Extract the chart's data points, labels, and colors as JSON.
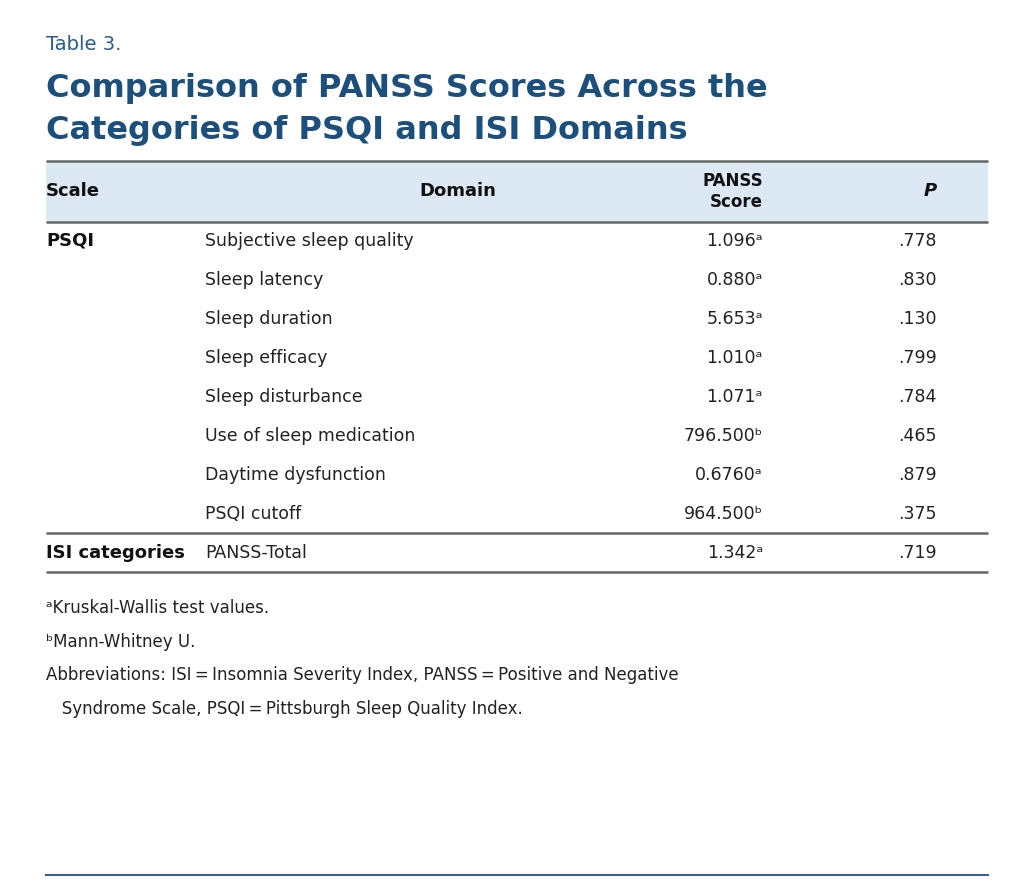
{
  "table_label": "Table 3.",
  "title_line1": "Comparison of PANSS Scores Across the",
  "title_line2": "Categories of PSQI and ISI Domains",
  "header_col0": "Scale",
  "header_col1": "Domain",
  "header_col2": "PANSS\nScore",
  "header_col3": "P",
  "rows": [
    [
      "PSQI",
      "Subjective sleep quality",
      "1.096ᵃ",
      ".778"
    ],
    [
      "",
      "Sleep latency",
      "0.880ᵃ",
      ".830"
    ],
    [
      "",
      "Sleep duration",
      "5.653ᵃ",
      ".130"
    ],
    [
      "",
      "Sleep efficacy",
      "1.010ᵃ",
      ".799"
    ],
    [
      "",
      "Sleep disturbance",
      "1.071ᵃ",
      ".784"
    ],
    [
      "",
      "Use of sleep medication",
      "796.500ᵇ",
      ".465"
    ],
    [
      "",
      "Daytime dysfunction",
      "0.6760ᵃ",
      ".879"
    ],
    [
      "",
      "PSQI cutoff",
      "964.500ᵇ",
      ".375"
    ],
    [
      "ISI categories",
      "PANSS-Total",
      "1.342ᵃ",
      ".719"
    ]
  ],
  "footnote1": "ᵃKruskal-Wallis test values.",
  "footnote2": "ᵇMann-Whitney U.",
  "footnote3": "Abbreviations: ISI = Insomnia Severity Index, PANSS = Positive and Negative",
  "footnote4": "   Syndrome Scale, PSQI = Pittsburgh Sleep Quality Index.",
  "bg_color": "#ffffff",
  "header_bg": "#dce8f3",
  "table_label_color": "#2b5c8a",
  "title_color": "#1d4f7c",
  "header_text_color": "#111111",
  "bold_color": "#111111",
  "body_text_color": "#222222",
  "line_color": "#666666",
  "bottom_line_color": "#3a6090"
}
